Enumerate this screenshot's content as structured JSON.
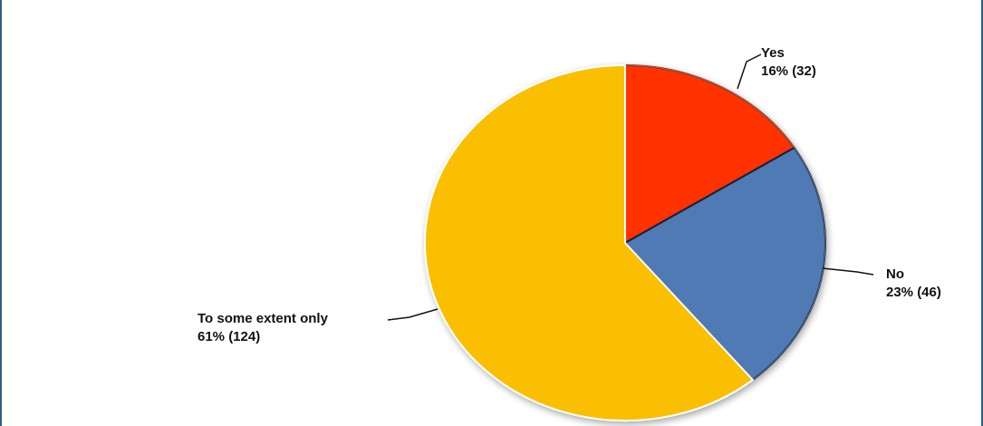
{
  "chart_data": {
    "type": "pie",
    "title": "",
    "slices": [
      {
        "name": "Yes",
        "percent": 16,
        "count": 32,
        "value_label": "16% (32)",
        "color": "#ff3300",
        "edge": "#7a1a00"
      },
      {
        "name": "No",
        "percent": 23,
        "count": 46,
        "value_label": "23% (46)",
        "color": "#4f7ab3",
        "edge": "#0d2140"
      },
      {
        "name": "To some extent only",
        "percent": 61,
        "count": 124,
        "value_label": "61% (124)",
        "color": "#f9bf00",
        "edge": "#ffffff"
      }
    ],
    "start_angle": "12 o'clock",
    "direction": "clockwise",
    "labels": "outside, with leader lines"
  }
}
